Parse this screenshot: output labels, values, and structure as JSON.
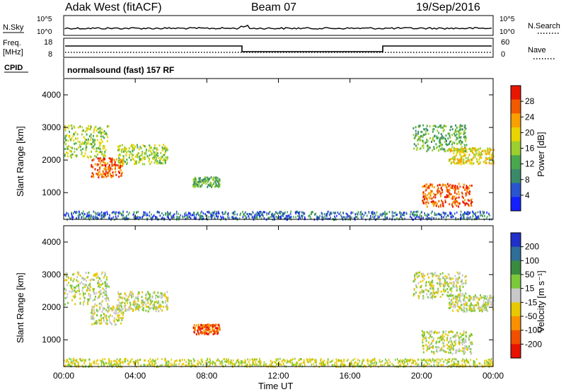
{
  "header": {
    "station": "Adak West (fitACF)",
    "beam": "Beam 07",
    "date": "19/Sep/2016"
  },
  "top_panels": {
    "nsky": {
      "label": "N.Sky",
      "tick_top": "10^5",
      "tick_bottom": "10^0"
    },
    "nsearch": {
      "label": "N.Search",
      "tick_top": "10^5",
      "tick_bottom": "10^0"
    },
    "freq": {
      "label_line1": "Freq.",
      "label_line2": "[MHz]",
      "tick_top": "18",
      "tick_bottom": "8"
    },
    "nave": {
      "label": "Nave",
      "tick_top": "60",
      "tick_bottom": "0"
    },
    "cpid": {
      "label": "CPID",
      "text": "normalsound (fast) 157 RF"
    }
  },
  "chart_data": [
    {
      "type": "heatmap",
      "name": "power",
      "ylabel": "Slant Range [km]",
      "ylim": [
        180,
        4500
      ],
      "yticks": [
        "1000",
        "2000",
        "3000",
        "4000"
      ],
      "xlim": [
        0,
        24
      ],
      "xticks": [
        "00:00",
        "04:00",
        "08:00",
        "12:00",
        "16:00",
        "20:00",
        "00:00"
      ],
      "colorbar": {
        "label": "Power [dB]",
        "ticks": [
          "4",
          "8",
          "12",
          "16",
          "20",
          "24",
          "28"
        ],
        "colors": [
          "#1420ff",
          "#2a55d0",
          "#3a8a6a",
          "#49a84e",
          "#9ccf2f",
          "#e8d400",
          "#f8a000",
          "#f05a00",
          "#e81600"
        ]
      },
      "regions": [
        {
          "t0": 0.0,
          "t1": 2.5,
          "r0": 2100,
          "r1": 3100,
          "level": 4
        },
        {
          "t0": 1.5,
          "t1": 3.3,
          "r0": 1500,
          "r1": 2100,
          "level": 7
        },
        {
          "t0": 3.0,
          "t1": 5.8,
          "r0": 1900,
          "r1": 2500,
          "level": 4
        },
        {
          "t0": 7.2,
          "t1": 8.7,
          "r0": 1200,
          "r1": 1500,
          "level": 3
        },
        {
          "t0": 19.5,
          "t1": 22.5,
          "r0": 2300,
          "r1": 3100,
          "level": 3
        },
        {
          "t0": 21.5,
          "t1": 24.0,
          "r0": 1900,
          "r1": 2400,
          "level": 5
        },
        {
          "t0": 20.0,
          "t1": 22.8,
          "r0": 600,
          "r1": 1300,
          "level": 7
        }
      ]
    },
    {
      "type": "heatmap",
      "name": "velocity",
      "ylabel": "Slant Range [km]",
      "ylim": [
        180,
        4500
      ],
      "yticks": [
        "1000",
        "2000",
        "3000",
        "4000"
      ],
      "xlim": [
        0,
        24
      ],
      "xticks": [
        "00:00",
        "04:00",
        "08:00",
        "12:00",
        "16:00",
        "20:00",
        "00:00"
      ],
      "xlabel": "Time UT",
      "colorbar": {
        "label": "Velocity [m s⁻¹]",
        "ticks": [
          "200",
          "100",
          "50",
          "15",
          "-15",
          "-50",
          "-100",
          "-200"
        ],
        "colors": [
          "#2030c8",
          "#2e6e98",
          "#3a8a40",
          "#7cc83c",
          "#c8c8c8",
          "#e8c800",
          "#f89000",
          "#f05000",
          "#e81200"
        ]
      },
      "regions": [
        {
          "t0": 0.0,
          "t1": 2.5,
          "r0": 2100,
          "r1": 3100,
          "level": 4
        },
        {
          "t0": 1.5,
          "t1": 3.3,
          "r0": 1500,
          "r1": 2100,
          "level": 4
        },
        {
          "t0": 3.0,
          "t1": 5.8,
          "r0": 1900,
          "r1": 2500,
          "level": 4
        },
        {
          "t0": 7.2,
          "t1": 8.7,
          "r0": 1200,
          "r1": 1500,
          "level": 7
        },
        {
          "t0": 19.5,
          "t1": 22.5,
          "r0": 2300,
          "r1": 3100,
          "level": 4
        },
        {
          "t0": 21.5,
          "t1": 24.0,
          "r0": 1900,
          "r1": 2400,
          "level": 4
        },
        {
          "t0": 20.0,
          "t1": 22.8,
          "r0": 600,
          "r1": 1300,
          "level": 4
        }
      ]
    }
  ]
}
